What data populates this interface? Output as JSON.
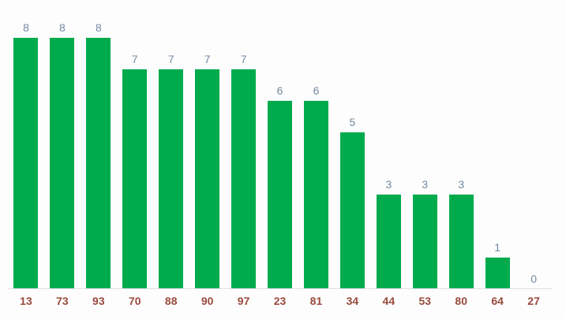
{
  "chart_data": {
    "type": "bar",
    "categories": [
      "13",
      "73",
      "93",
      "70",
      "88",
      "90",
      "97",
      "23",
      "81",
      "34",
      "44",
      "53",
      "80",
      "64",
      "27"
    ],
    "values": [
      8,
      8,
      8,
      7,
      7,
      7,
      7,
      6,
      6,
      5,
      3,
      3,
      3,
      1,
      0
    ],
    "title": "",
    "xlabel": "",
    "ylabel": "",
    "ylim": [
      0,
      8
    ],
    "grid": false,
    "legend_position": "none",
    "annotations_shown": true,
    "colors": {
      "bar": "#00ab4e",
      "value_label": "#7589a2",
      "axis_label": "#9a4a3d",
      "baseline": "#e0e0e0",
      "background": "#fdfdfd"
    }
  }
}
